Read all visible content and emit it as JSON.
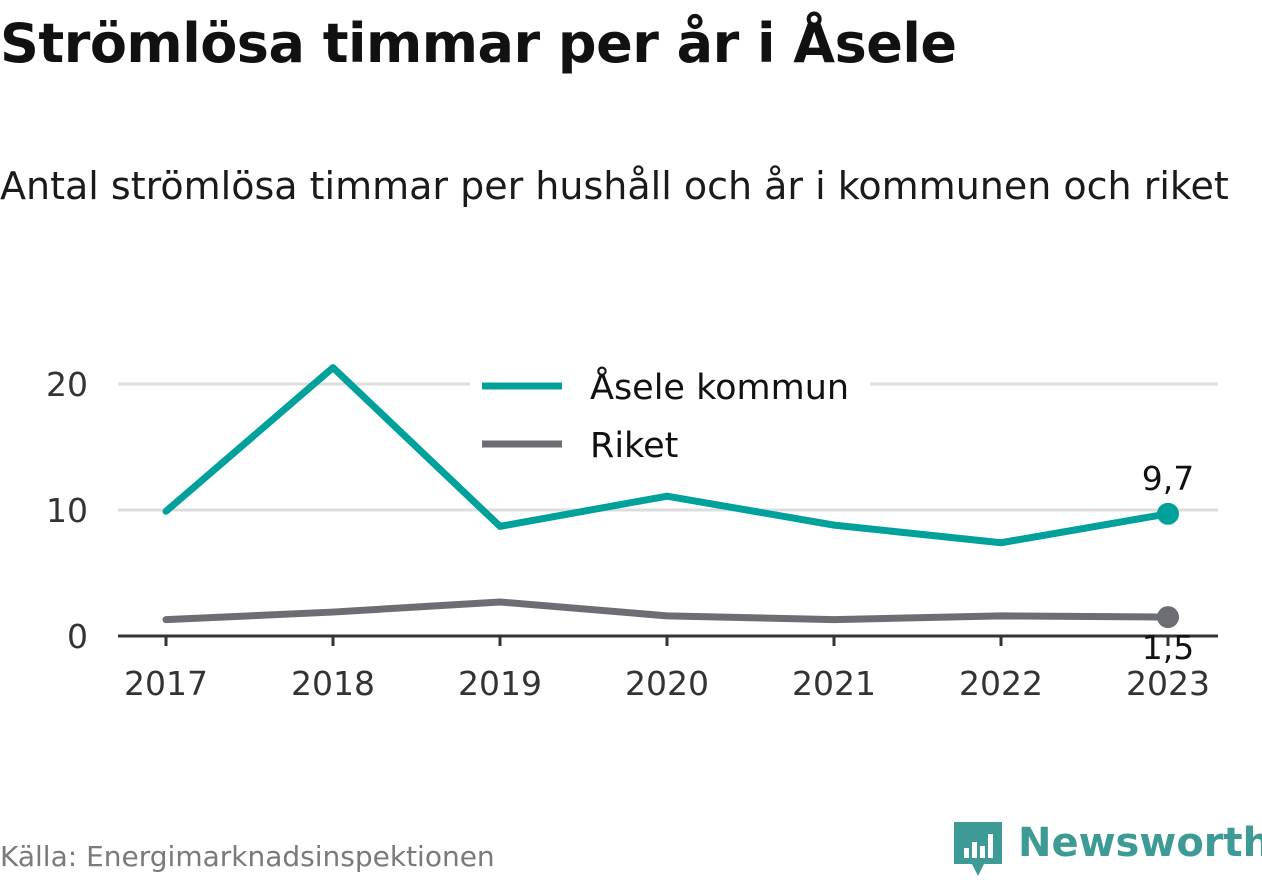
{
  "title": "Strömlösa timmar per år i Åsele",
  "subtitle": "Antal strömlösa timmar per hushåll och år i kommunen och riket",
  "source": "Källa: Energimarknadsinspektionen",
  "brand": "Newsworthy",
  "colors": {
    "asele": "#00a19a",
    "riket": "#6d6d74",
    "grid": "#dddddd",
    "axis": "#333333"
  },
  "chart_data": {
    "type": "line",
    "x": [
      "2017",
      "2018",
      "2019",
      "2020",
      "2021",
      "2022",
      "2023"
    ],
    "ylim": [
      0,
      20
    ],
    "yticks": [
      "0",
      "10",
      "20"
    ],
    "grid": true,
    "legend_position": "top-center",
    "series": [
      {
        "name": "Åsele kommun",
        "color": "#00a19a",
        "values": [
          9.9,
          21.3,
          8.7,
          11.1,
          8.8,
          7.4,
          9.7
        ],
        "end_label": "9,7"
      },
      {
        "name": "Riket",
        "color": "#6d6d74",
        "values": [
          1.3,
          1.9,
          2.7,
          1.6,
          1.3,
          1.6,
          1.5
        ],
        "end_label": "1,5"
      }
    ]
  }
}
